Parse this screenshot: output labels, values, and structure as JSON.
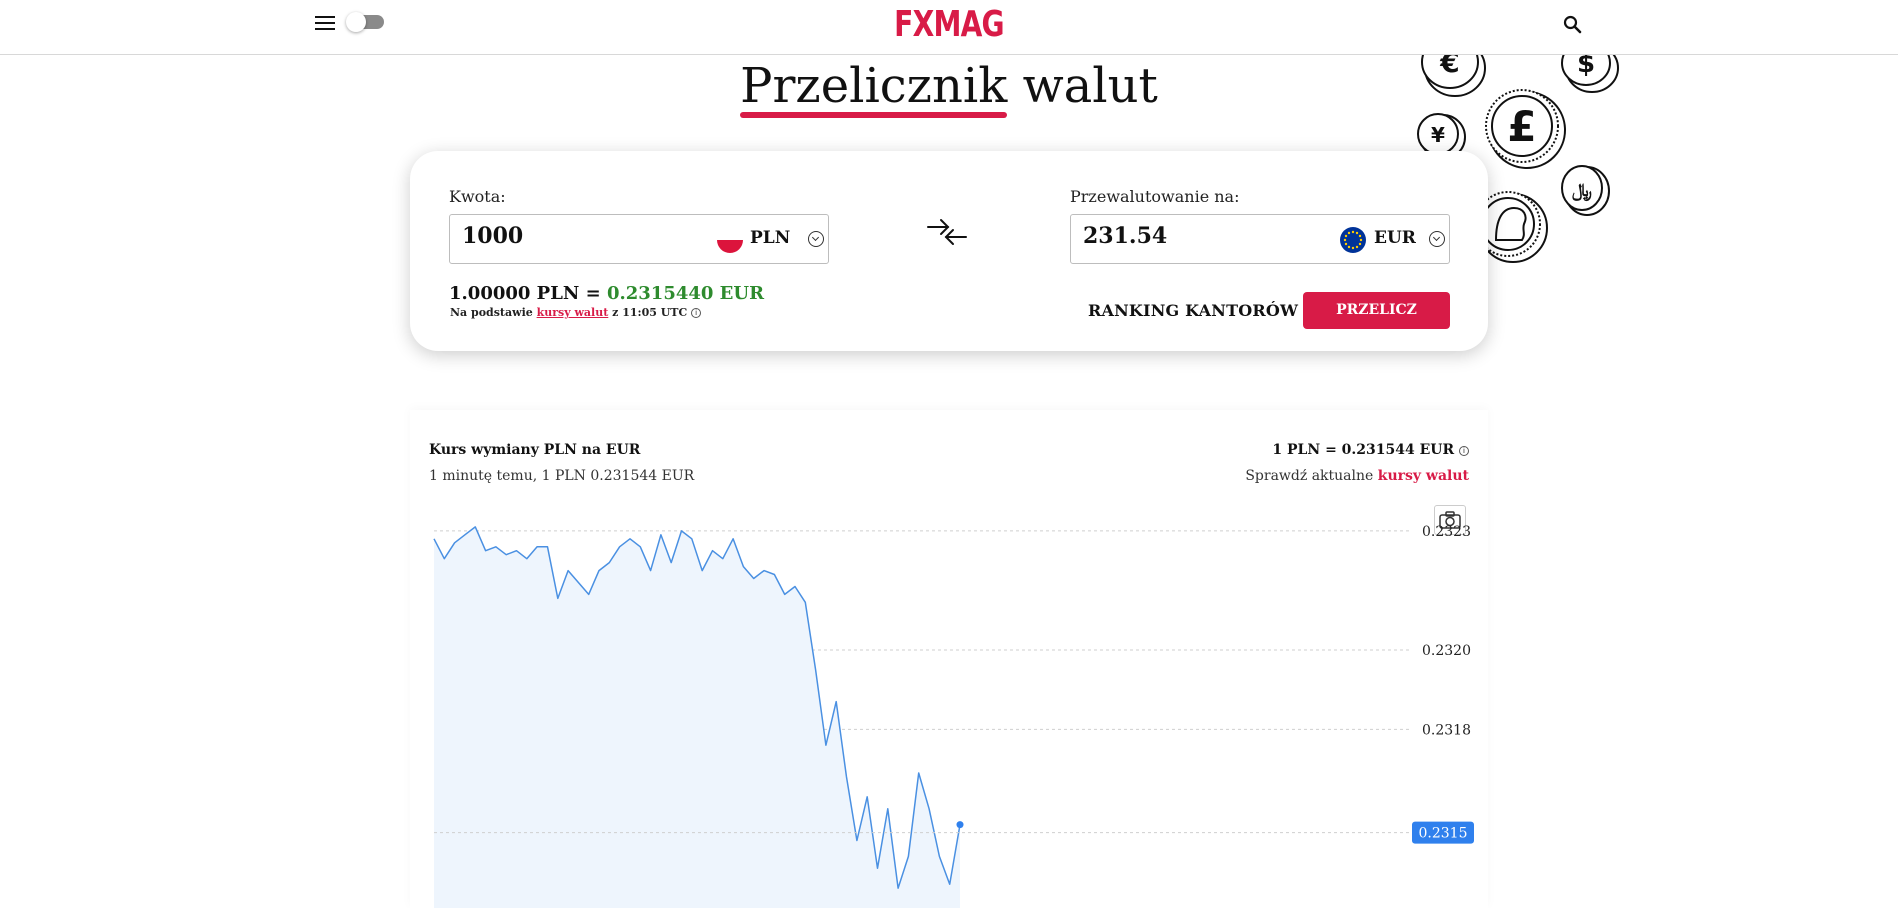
{
  "header": {
    "logo": "FXMAG",
    "menu_icon": "hamburger-icon",
    "search_icon": "search-icon",
    "theme_toggle": "off"
  },
  "page": {
    "title_part1": "Przelicznik",
    "title_part2": " walut"
  },
  "converter": {
    "amount_label": "Kwota:",
    "amount_value": "1000",
    "from_currency": "PLN",
    "target_label": "Przewalutowanie na:",
    "target_value": "231.54",
    "to_currency": "EUR",
    "rate_prefix": "1.00000 PLN = ",
    "rate_value": "0.2315440 EUR",
    "basis_prefix": "Na podstawie ",
    "basis_link": "kursy walut",
    "basis_suffix": " z 11:05 UTC",
    "ranking_label": "RANKING KANTORÓW",
    "convert_button": "PRZELICZ"
  },
  "chart_panel": {
    "title": "Kurs wymiany PLN na EUR",
    "subtitle": "1 minutę temu, 1 PLN 0.231544 EUR",
    "rate_summary": "1 PLN = 0.231544 EUR",
    "check_prefix": "Sprawdź aktualne ",
    "check_link": "kursy walut"
  },
  "colors": {
    "accent": "#d81b47",
    "positive": "#2e8b2e",
    "line": "#4a90e2",
    "area": "#eef5fd",
    "badge": "#2f80ed"
  },
  "chart_data": {
    "type": "line",
    "title": "",
    "xlabel": "",
    "ylabel": "",
    "ylim": [
      0.23135,
      0.23234
    ],
    "yticks": [
      "0.2323",
      "0.2320",
      "0.2318"
    ],
    "current_label": "0.2315",
    "current_value": 0.23154,
    "series": [
      {
        "values": [
          0.23228,
          0.23223,
          0.23227,
          0.23229,
          0.23231,
          0.23225,
          0.23226,
          0.23224,
          0.23225,
          0.23223,
          0.23226,
          0.23226,
          0.23213,
          0.2322,
          0.23217,
          0.23214,
          0.2322,
          0.23222,
          0.23226,
          0.23228,
          0.23226,
          0.2322,
          0.23229,
          0.23222,
          0.2323,
          0.23228,
          0.2322,
          0.23225,
          0.23223,
          0.23228,
          0.23221,
          0.23218,
          0.2322,
          0.23219,
          0.23214,
          0.23216,
          0.23212,
          0.23195,
          0.23176,
          0.23187,
          0.23168,
          0.23152,
          0.23163,
          0.23145,
          0.2316,
          0.2314,
          0.23148,
          0.23169,
          0.2316,
          0.23148,
          0.23141,
          0.23156
        ]
      }
    ]
  }
}
